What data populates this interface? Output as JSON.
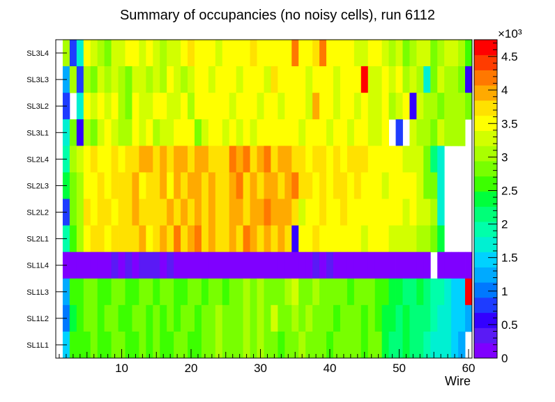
{
  "chart_data": {
    "type": "heatmap",
    "title": "Summary of occupancies (no noisy cells), run 6112",
    "xlabel": "Wire",
    "ylabel": "",
    "x_range": [
      0.5,
      60.5
    ],
    "x_ticks": [
      10,
      20,
      30,
      40,
      50,
      60
    ],
    "x_tick_labels": [
      "10",
      "20",
      "30",
      "40",
      "50",
      "60"
    ],
    "rows": [
      "SL3L4",
      "SL3L3",
      "SL3L2",
      "SL3L1",
      "SL2L4",
      "SL2L3",
      "SL2L2",
      "SL2L1",
      "SL1L4",
      "SL1L3",
      "SL1L2",
      "SL1L1"
    ],
    "color_scale": {
      "multiplier_label": "×10³",
      "min": 0,
      "max": 4750,
      "ticks": [
        0,
        500,
        1000,
        1500,
        2000,
        2500,
        3000,
        3500,
        4000,
        4500
      ],
      "tick_labels": [
        "0",
        "0.5",
        "1",
        "1.5",
        "2",
        "2.5",
        "3",
        "3.5",
        "4",
        "4.5"
      ],
      "palette": [
        "#7F00FF",
        "#5A1AF5",
        "#3300FF",
        "#1E3CFF",
        "#0078FF",
        "#00AAFF",
        "#00D2FF",
        "#00F0D2",
        "#00FFAA",
        "#00FF78",
        "#00FF3C",
        "#3CFF00",
        "#78FF00",
        "#AAFF00",
        "#D2FF00",
        "#FFFF00",
        "#FFE100",
        "#FFAA00",
        "#FF7800",
        "#FF3C00",
        "#FF0000"
      ]
    },
    "values": [
      [
        null,
        3100,
        750,
        1600,
        3400,
        3200,
        3100,
        2900,
        3300,
        3200,
        3400,
        3600,
        3300,
        3500,
        3200,
        3100,
        3300,
        3200,
        3500,
        3700,
        3600,
        3400,
        3500,
        3300,
        3600,
        3400,
        3500,
        3600,
        3700,
        3500,
        3400,
        3600,
        3500,
        3400,
        4200,
        3500,
        3600,
        3700,
        4200,
        3500,
        3600,
        3400,
        3500,
        3300,
        3200,
        3400,
        3600,
        3300,
        3100,
        3200,
        2900,
        3000,
        3300,
        3300,
        2800,
        3100,
        3200,
        3200,
        3100,
        2500
      ],
      [
        null,
        1200,
        3000,
        700,
        3100,
        2900,
        3300,
        3000,
        3200,
        3100,
        2900,
        3300,
        3300,
        3100,
        3200,
        3100,
        3400,
        3300,
        3100,
        3300,
        3500,
        3400,
        3300,
        3500,
        3600,
        3400,
        3300,
        3600,
        3500,
        3400,
        3300,
        3700,
        3500,
        3400,
        3600,
        3500,
        3300,
        3500,
        3400,
        3500,
        3300,
        3600,
        3500,
        3400,
        4750,
        3300,
        3200,
        3500,
        3300,
        3400,
        3100,
        3200,
        3000,
        1800,
        2900,
        3200,
        3100,
        3000,
        2800,
        600
      ],
      [
        null,
        800,
        null,
        1700,
        3400,
        3200,
        3600,
        3300,
        3400,
        3100,
        2900,
        3400,
        3300,
        3200,
        3500,
        3400,
        3200,
        3300,
        3400,
        3100,
        3600,
        3500,
        3400,
        3600,
        3500,
        3300,
        3600,
        3400,
        3500,
        3300,
        3400,
        3500,
        3300,
        3500,
        3600,
        3400,
        3300,
        4000,
        3500,
        3400,
        3300,
        3600,
        3500,
        3300,
        3600,
        3200,
        3300,
        3400,
        3100,
        3300,
        3500,
        600,
        3200,
        3000,
        3100,
        2900,
        3100,
        3000,
        3100,
        2900
      ],
      [
        null,
        1800,
        2800,
        500,
        3000,
        2900,
        3200,
        3400,
        3300,
        3100,
        3000,
        3500,
        3300,
        3400,
        3100,
        3200,
        3300,
        3500,
        3400,
        3500,
        2900,
        3300,
        3400,
        3500,
        3300,
        3400,
        3300,
        3500,
        3300,
        3400,
        3600,
        3500,
        3400,
        3600,
        3500,
        3300,
        3400,
        3500,
        3400,
        3300,
        3500,
        3400,
        3300,
        3600,
        3500,
        3300,
        3200,
        3500,
        null,
        900,
        null,
        3200,
        3000,
        3100,
        2800,
        3200,
        3100,
        3000,
        3000,
        null
      ],
      [
        null,
        2000,
        3000,
        3200,
        3600,
        3700,
        3600,
        3500,
        3700,
        3600,
        3800,
        3700,
        3900,
        3900,
        3800,
        3900,
        3700,
        3900,
        3900,
        3800,
        3900,
        3900,
        3800,
        3700,
        3800,
        4100,
        3900,
        4200,
        3800,
        3900,
        4100,
        3800,
        3900,
        4000,
        3800,
        3700,
        3600,
        3800,
        3700,
        3600,
        3800,
        3600,
        3700,
        3800,
        3700,
        3600,
        3600,
        3400,
        3500,
        3400,
        3300,
        3300,
        3200,
        2800,
        2100,
        1800,
        null,
        null,
        null,
        null
      ],
      [
        null,
        2400,
        2900,
        3100,
        3600,
        3500,
        3800,
        3600,
        3700,
        3800,
        3800,
        3900,
        3600,
        3700,
        3800,
        3900,
        3600,
        3900,
        3800,
        3900,
        3900,
        3800,
        3900,
        3800,
        3700,
        3900,
        4100,
        3800,
        3900,
        3800,
        3900,
        4000,
        3800,
        3900,
        4100,
        3800,
        3700,
        3500,
        3700,
        3600,
        3800,
        3700,
        3600,
        3700,
        3600,
        3500,
        3500,
        3300,
        3600,
        3500,
        3400,
        3400,
        3200,
        2900,
        2800,
        1800,
        null,
        null,
        null,
        null
      ],
      [
        null,
        900,
        2800,
        3100,
        3700,
        3600,
        3700,
        3800,
        3600,
        3700,
        3800,
        3900,
        3700,
        3800,
        3800,
        3700,
        3900,
        3800,
        4000,
        3800,
        3900,
        3800,
        3900,
        3800,
        3700,
        3900,
        4000,
        3800,
        3900,
        4000,
        4100,
        3900,
        3900,
        4000,
        3800,
        3200,
        3500,
        3600,
        3700,
        3500,
        3600,
        3700,
        3600,
        3500,
        3400,
        3600,
        3500,
        3400,
        3600,
        3500,
        3300,
        3400,
        3300,
        3300,
        3000,
        1800,
        null,
        null,
        null,
        null
      ],
      [
        null,
        2000,
        2600,
        3100,
        3600,
        3700,
        3800,
        3600,
        3700,
        3800,
        3700,
        3800,
        3900,
        3600,
        3800,
        3900,
        3700,
        4200,
        3800,
        3900,
        4100,
        3800,
        3900,
        3800,
        3700,
        4000,
        3800,
        4100,
        4000,
        3800,
        3900,
        3800,
        3900,
        3800,
        600,
        3500,
        3600,
        3700,
        3500,
        3600,
        3400,
        3500,
        3600,
        3500,
        3300,
        3400,
        3500,
        3400,
        3300,
        3300,
        3200,
        3200,
        3100,
        3100,
        2900,
        2300,
        null,
        null,
        null,
        null
      ],
      [
        null,
        80,
        80,
        80,
        80,
        80,
        80,
        80,
        400,
        150,
        400,
        80,
        300,
        300,
        300,
        150,
        300,
        80,
        80,
        80,
        80,
        80,
        80,
        80,
        80,
        80,
        80,
        80,
        80,
        80,
        80,
        80,
        80,
        80,
        80,
        80,
        80,
        300,
        80,
        300,
        80,
        80,
        80,
        80,
        80,
        80,
        80,
        80,
        80,
        80,
        80,
        80,
        80,
        80,
        null,
        80,
        80,
        80,
        80,
        80
      ],
      [
        null,
        1300,
        2600,
        2700,
        2800,
        2900,
        2600,
        2700,
        2800,
        2900,
        2700,
        2600,
        2800,
        2900,
        2700,
        2800,
        2900,
        2700,
        2600,
        2800,
        2900,
        2700,
        2800,
        2900,
        2700,
        2800,
        2900,
        3100,
        2900,
        3000,
        2800,
        2900,
        2800,
        3100,
        3200,
        2800,
        2900,
        3000,
        2800,
        2900,
        2800,
        2900,
        2700,
        2800,
        2900,
        2800,
        2700,
        2600,
        2400,
        2300,
        2200,
        2100,
        2300,
        2200,
        2000,
        1900,
        1800,
        1500,
        1400,
        4700
      ],
      [
        null,
        1000,
        2400,
        2600,
        2800,
        2900,
        2700,
        2800,
        2900,
        2700,
        2600,
        2800,
        2900,
        2700,
        2800,
        2600,
        2900,
        2700,
        2800,
        2900,
        2700,
        2800,
        2900,
        3000,
        2800,
        2900,
        2800,
        3100,
        2900,
        3000,
        2800,
        3200,
        2900,
        2800,
        3100,
        2800,
        3000,
        2900,
        2800,
        2900,
        2700,
        2800,
        2900,
        2800,
        2700,
        2800,
        2700,
        2400,
        2300,
        2200,
        2300,
        2100,
        2200,
        2100,
        1900,
        1800,
        1700,
        1500,
        1400,
        1200
      ],
      [
        null,
        1500,
        2600,
        2600,
        2700,
        2800,
        2600,
        2700,
        2900,
        2800,
        2700,
        2500,
        2800,
        2700,
        2800,
        2600,
        2700,
        2900,
        2800,
        2700,
        2600,
        2800,
        2900,
        3000,
        2800,
        2900,
        2800,
        3000,
        2900,
        3000,
        2800,
        2900,
        2700,
        2800,
        2900,
        3000,
        2800,
        2800,
        2900,
        2700,
        2800,
        2900,
        2800,
        2900,
        2700,
        2800,
        2900,
        2300,
        2200,
        2200,
        2300,
        2100,
        2200,
        2000,
        1800,
        1700,
        1600,
        1500,
        1300,
        null
      ]
    ]
  }
}
